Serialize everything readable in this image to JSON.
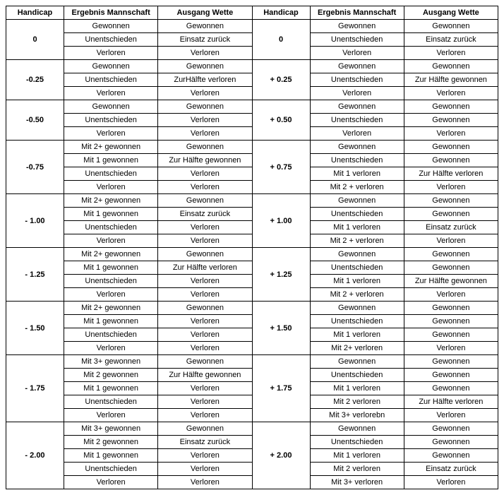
{
  "headers": {
    "h1": "Handicap",
    "h2": "Ergebnis Mannschaft",
    "h3": "Ausgang Wette",
    "h4": "Handicap",
    "h5": "Ergebnis Mannschaft",
    "h6": "Ausgang Wette"
  },
  "groups": [
    {
      "left_hcap": "0",
      "right_hcap": "0",
      "left": [
        [
          "Gewonnen",
          "Gewonnen"
        ],
        [
          "Unentschieden",
          "Einsatz zurück"
        ],
        [
          "Verloren",
          "Verloren"
        ]
      ],
      "right": [
        [
          "Gewonnen",
          "Gewonnen"
        ],
        [
          "Unentschieden",
          "Einsatz zurück"
        ],
        [
          "Verloren",
          "Verloren"
        ]
      ]
    },
    {
      "left_hcap": "-0.25",
      "right_hcap": "+ 0.25",
      "left": [
        [
          "Gewonnen",
          "Gewonnen"
        ],
        [
          "Unentschieden",
          "ZurHälfte verloren"
        ],
        [
          "Verloren",
          "Verloren"
        ]
      ],
      "right": [
        [
          "Gewonnen",
          "Gewonnen"
        ],
        [
          "Unentschieden",
          "Zur Hälfte gewonnen"
        ],
        [
          "Verloren",
          "Verloren"
        ]
      ]
    },
    {
      "left_hcap": "-0.50",
      "right_hcap": "+ 0.50",
      "left": [
        [
          "Gewonnen",
          "Gewonnen"
        ],
        [
          "Unentschieden",
          "Verloren"
        ],
        [
          "Verloren",
          "Verloren"
        ]
      ],
      "right": [
        [
          "Gewonnen",
          "Gewonnen"
        ],
        [
          "Unentschieden",
          "Gewonnen"
        ],
        [
          "Verloren",
          "Verloren"
        ]
      ]
    },
    {
      "left_hcap": "-0.75",
      "right_hcap": "+ 0.75",
      "left": [
        [
          "Mit 2+ gewonnen",
          "Gewonnen"
        ],
        [
          "Mit 1 gewonnen",
          "Zur Hälfte gewonnen"
        ],
        [
          "Unentschieden",
          "Verloren"
        ],
        [
          "Verloren",
          "Verloren"
        ]
      ],
      "right": [
        [
          "Gewonnen",
          "Gewonnen"
        ],
        [
          "Unentschieden",
          "Gewonnen"
        ],
        [
          "Mit 1 verloren",
          "Zur Hälfte verloren"
        ],
        [
          "Mit 2 + verloren",
          "Verloren"
        ]
      ]
    },
    {
      "left_hcap": "- 1.00",
      "right_hcap": "+ 1.00",
      "left": [
        [
          "Mit 2+ gewonnen",
          "Gewonnen"
        ],
        [
          "Mit 1 gewonnen",
          "Einsatz zurück"
        ],
        [
          "Unentschieden",
          "Verloren"
        ],
        [
          "Verloren",
          "Verloren"
        ]
      ],
      "right": [
        [
          "Gewonnen",
          "Gewonnen"
        ],
        [
          "Unentschieden",
          "Gewonnen"
        ],
        [
          "Mit 1 verloren",
          "Einsatz zurück"
        ],
        [
          "Mit 2 + verloren",
          "Verloren"
        ]
      ]
    },
    {
      "left_hcap": "- 1.25",
      "right_hcap": "+ 1.25",
      "left": [
        [
          "Mit 2+ gewonnen",
          "Gewonnen"
        ],
        [
          "Mit 1 gewonnen",
          "Zur Hälfte verloren"
        ],
        [
          "Unentschieden",
          "Verloren"
        ],
        [
          "Verloren",
          "Verloren"
        ]
      ],
      "right": [
        [
          "Gewonnen",
          "Gewonnen"
        ],
        [
          "Unentschieden",
          "Gewonnen"
        ],
        [
          "Mit 1 verloren",
          "Zur Hälfte gewonnen"
        ],
        [
          "Mit 2 + verloren",
          "Verloren"
        ]
      ]
    },
    {
      "left_hcap": "- 1.50",
      "right_hcap": "+ 1.50",
      "left": [
        [
          "Mit 2+ gewonnen",
          "Gewonnen"
        ],
        [
          "Mit 1 gewonnen",
          "Verloren"
        ],
        [
          "Unentschieden",
          "Verloren"
        ],
        [
          "Verloren",
          "Verloren"
        ]
      ],
      "right": [
        [
          "Gewonnen",
          "Gewonnen"
        ],
        [
          "Unentschieden",
          "Gewonnen"
        ],
        [
          "Mit 1 verloren",
          "Gewonnen"
        ],
        [
          "Mit 2+ verloren",
          "Verloren"
        ]
      ]
    },
    {
      "left_hcap": "- 1.75",
      "right_hcap": "+ 1.75",
      "left": [
        [
          "Mit 3+ gewonnen",
          "Gewonnen"
        ],
        [
          "Mit 2 gewonnen",
          "Zur Hälfte gewonnen"
        ],
        [
          "Mit 1 gewonnen",
          "Verloren"
        ],
        [
          "Unentschieden",
          "Verloren"
        ],
        [
          "Verloren",
          "Verloren"
        ]
      ],
      "right": [
        [
          "Gewonnen",
          "Gewonnen"
        ],
        [
          "Unentschieden",
          "Gewonnen"
        ],
        [
          "Mit 1 verloren",
          "Gewonnen"
        ],
        [
          "Mit 2 verloren",
          "Zur Hälfte verloren"
        ],
        [
          "Mit 3+ verlorebn",
          "Verloren"
        ]
      ]
    },
    {
      "left_hcap": "- 2.00",
      "right_hcap": "+ 2.00",
      "left": [
        [
          "Mit 3+ gewonnen",
          "Gewonnen"
        ],
        [
          "Mit 2 gewonnen",
          "Einsatz zurück"
        ],
        [
          "Mit 1 gewonnen",
          "Verloren"
        ],
        [
          "Unentschieden",
          "Verloren"
        ],
        [
          "Verloren",
          "Verloren"
        ]
      ],
      "right": [
        [
          "Gewonnen",
          "Gewonnen"
        ],
        [
          "Unentschieden",
          "Gewonnen"
        ],
        [
          "Mit 1 verloren",
          "Gewonnen"
        ],
        [
          "Mit 2 verloren",
          "Einsatz zurück"
        ],
        [
          "Mit 3+ verloren",
          "Verloren"
        ]
      ]
    }
  ]
}
